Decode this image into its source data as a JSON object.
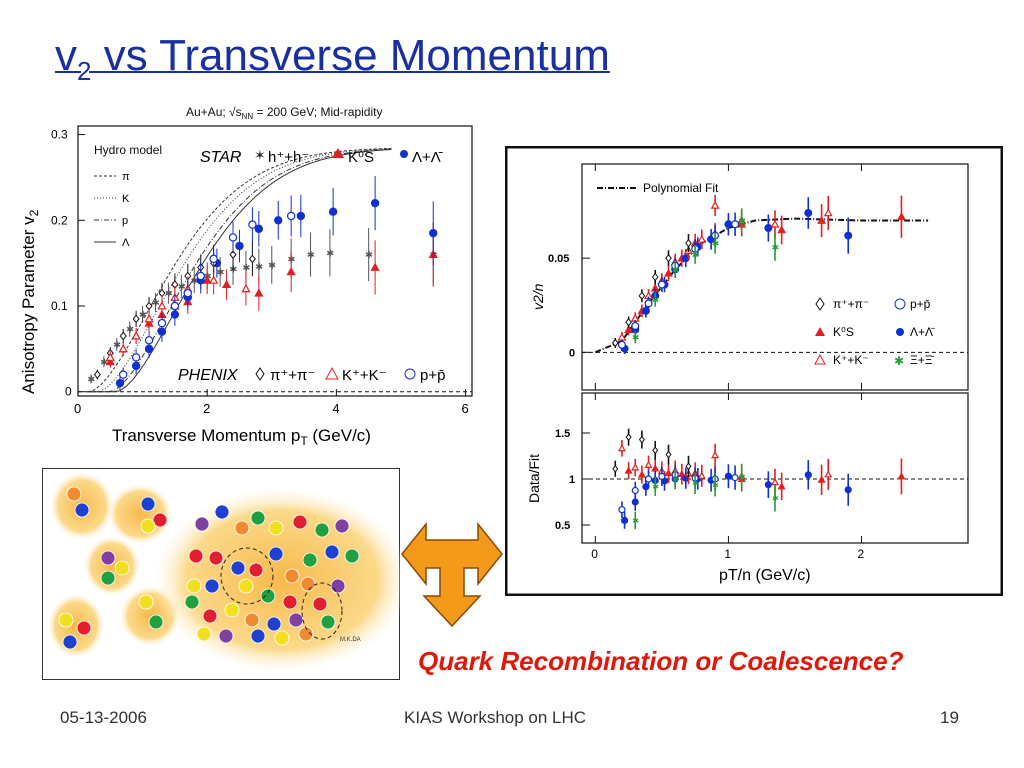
{
  "slide": {
    "title_main": "v",
    "title_sub": "2",
    "title_rest": " vs Transverse Momentum",
    "caption": "Quark Recombination or Coalescence?",
    "footer_date": "05-13-2006",
    "footer_event": "KIAS Workshop on LHC",
    "footer_page": "19"
  },
  "colors": {
    "title": "#1a2fa0",
    "caption": "#e0180a",
    "red": "#e02020",
    "blue": "#1030d0",
    "green": "#20a030",
    "black": "#111111"
  },
  "left_plot": {
    "header": "Au+Au; √s",
    "header_sub": "NN",
    "header_rest": " = 200 GeV; Mid-rapidity",
    "ylabel": "Anisotropy Parameter v",
    "ylabel_sub": "2",
    "xlabel": "Transverse Momentum p",
    "xlabel_sub": "T",
    "xlabel_rest": " (GeV/c)",
    "hydro_title": "Hydro model",
    "hydro_items": [
      "π",
      "K",
      "p",
      "Λ"
    ],
    "star_label": "STAR",
    "phenix_label": "PHENIX",
    "star_legend": [
      "h⁺+h⁻",
      "K⁰S",
      "Λ+Λ̄"
    ],
    "phenix_legend": [
      "π⁺+π⁻",
      "K⁺+K⁻",
      "p+p̄"
    ],
    "xticks": [
      "0",
      "2",
      "4",
      "6"
    ],
    "yticks": [
      "0",
      "0.1",
      "0.2",
      "0.3"
    ]
  },
  "right_plot": {
    "legend_fit": "Polynomial Fit",
    "upper_ylabel": "v2/n",
    "lower_ylabel": "Data/Fit",
    "xlabel": "pT/n (GeV/c)",
    "upper_yticks": [
      "0",
      "0.05"
    ],
    "lower_yticks": [
      "0.5",
      "1",
      "1.5"
    ],
    "xticks": [
      "0",
      "1",
      "2"
    ],
    "legend": [
      "π⁺+π⁻",
      "p+p̄",
      "K⁰S",
      "Λ+Λ̄",
      "K⁺+K⁻",
      "Ξ+Ξ̄"
    ]
  },
  "illustration": {
    "label": "M.K.DA"
  },
  "chart_data": [
    {
      "type": "scatter",
      "title": "Au+Au; √sNN = 200 GeV; Mid-rapidity",
      "xlabel": "Transverse Momentum pT (GeV/c)",
      "ylabel": "Anisotropy Parameter v2",
      "xlim": [
        0,
        6.1
      ],
      "ylim": [
        -0.005,
        0.31
      ],
      "series": [
        {
          "name": "STAR h⁺+h⁻",
          "color": "#555555",
          "marker": "star",
          "x": [
            0.2,
            0.4,
            0.6,
            0.8,
            1.0,
            1.2,
            1.4,
            1.6,
            1.8,
            2.0,
            2.2,
            2.4,
            2.6,
            2.8,
            3.0,
            3.3,
            3.6,
            3.9,
            4.5,
            5.5
          ],
          "y": [
            0.015,
            0.035,
            0.055,
            0.073,
            0.09,
            0.104,
            0.115,
            0.123,
            0.13,
            0.135,
            0.14,
            0.143,
            0.145,
            0.146,
            0.148,
            0.155,
            0.16,
            0.162,
            0.16,
            0.16
          ]
        },
        {
          "name": "STAR K⁰S",
          "color": "#e02020",
          "marker": "triangle",
          "x": [
            0.5,
            0.7,
            0.9,
            1.1,
            1.3,
            1.5,
            1.7,
            2.0,
            2.3,
            2.8,
            3.3,
            4.6,
            5.5
          ],
          "y": [
            0.035,
            0.05,
            0.065,
            0.08,
            0.09,
            0.1,
            0.105,
            0.13,
            0.125,
            0.115,
            0.14,
            0.145,
            0.16
          ]
        },
        {
          "name": "STAR Λ+Λ̄",
          "color": "#1030d0",
          "marker": "circle",
          "x": [
            0.65,
            0.9,
            1.1,
            1.3,
            1.5,
            1.7,
            1.9,
            2.15,
            2.5,
            2.8,
            3.1,
            3.45,
            3.95,
            4.6,
            5.5
          ],
          "y": [
            0.01,
            0.03,
            0.05,
            0.07,
            0.09,
            0.11,
            0.13,
            0.15,
            0.17,
            0.19,
            0.2,
            0.205,
            0.21,
            0.22,
            0.185
          ]
        },
        {
          "name": "PHENIX π⁺+π⁻",
          "color": "#111111",
          "marker": "diamond",
          "x": [
            0.3,
            0.5,
            0.7,
            0.9,
            1.1,
            1.3,
            1.5,
            1.7,
            1.9,
            2.1,
            2.4,
            2.7
          ],
          "y": [
            0.02,
            0.045,
            0.065,
            0.085,
            0.1,
            0.115,
            0.125,
            0.135,
            0.145,
            0.15,
            0.16,
            0.155
          ]
        },
        {
          "name": "PHENIX K⁺+K⁻",
          "color": "#e02020",
          "marker": "triangle-open",
          "x": [
            0.5,
            0.7,
            0.9,
            1.1,
            1.3,
            1.5,
            1.7,
            2.1,
            2.6
          ],
          "y": [
            0.04,
            0.05,
            0.065,
            0.085,
            0.1,
            0.11,
            0.12,
            0.13,
            0.12
          ]
        },
        {
          "name": "PHENIX p+p̄",
          "color": "#1030d0",
          "marker": "circle-open",
          "x": [
            0.7,
            0.9,
            1.1,
            1.3,
            1.5,
            1.7,
            1.9,
            2.1,
            2.4,
            2.7,
            3.3
          ],
          "y": [
            0.02,
            0.04,
            0.06,
            0.08,
            0.1,
            0.115,
            0.135,
            0.155,
            0.18,
            0.195,
            0.205
          ]
        }
      ]
    },
    {
      "type": "scatter",
      "xlabel": "pT/n (GeV/c)",
      "ylabel": "v2/n",
      "xlim": [
        -0.1,
        2.8
      ],
      "ylim": [
        -0.02,
        0.1
      ],
      "series": [
        {
          "name": "Polynomial Fit",
          "color": "#111111",
          "marker": "line",
          "x": [
            0.0,
            0.2,
            0.4,
            0.6,
            0.8,
            1.0,
            1.2,
            1.5,
            2.0,
            2.5
          ],
          "y": [
            0.0,
            0.006,
            0.026,
            0.044,
            0.058,
            0.066,
            0.07,
            0.071,
            0.07,
            0.07
          ]
        },
        {
          "name": "K⁰S",
          "color": "#e02020",
          "marker": "triangle",
          "x": [
            0.25,
            0.35,
            0.45,
            0.55,
            0.65,
            0.75,
            0.9,
            1.1,
            1.4,
            1.7,
            2.3
          ],
          "y": [
            0.012,
            0.022,
            0.034,
            0.042,
            0.05,
            0.058,
            0.063,
            0.068,
            0.065,
            0.07,
            0.072
          ]
        },
        {
          "name": "Λ+Λ̄",
          "color": "#1030d0",
          "marker": "circle",
          "x": [
            0.22,
            0.3,
            0.38,
            0.45,
            0.52,
            0.6,
            0.68,
            0.77,
            0.87,
            1.0,
            1.3,
            1.6,
            1.9
          ],
          "y": [
            0.002,
            0.012,
            0.022,
            0.03,
            0.036,
            0.044,
            0.05,
            0.056,
            0.06,
            0.068,
            0.066,
            0.074,
            0.062
          ]
        },
        {
          "name": "K⁺+K⁻",
          "color": "#e02020",
          "marker": "triangle-open",
          "x": [
            0.2,
            0.3,
            0.4,
            0.5,
            0.6,
            0.7,
            0.8,
            0.9,
            1.1,
            1.35,
            1.75
          ],
          "y": [
            0.008,
            0.018,
            0.03,
            0.038,
            0.048,
            0.054,
            0.06,
            0.078,
            0.07,
            0.068,
            0.074
          ]
        },
        {
          "name": "π⁺+π⁻",
          "color": "#111111",
          "marker": "diamond-open",
          "x": [
            0.15,
            0.25,
            0.35,
            0.45,
            0.55,
            0.7
          ],
          "y": [
            0.005,
            0.016,
            0.03,
            0.04,
            0.05,
            0.058
          ]
        },
        {
          "name": "p+p̄",
          "color": "#1030d0",
          "marker": "circle-open",
          "x": [
            0.2,
            0.3,
            0.4,
            0.5,
            0.6,
            0.75,
            0.9,
            1.05
          ],
          "y": [
            0.004,
            0.014,
            0.026,
            0.036,
            0.046,
            0.055,
            0.062,
            0.068
          ]
        },
        {
          "name": "Ξ+Ξ̄",
          "color": "#20a030",
          "marker": "star",
          "x": [
            0.3,
            0.45,
            0.6,
            0.75,
            0.9,
            1.1,
            1.35
          ],
          "y": [
            0.008,
            0.028,
            0.044,
            0.052,
            0.058,
            0.07,
            0.056
          ]
        }
      ]
    }
  ]
}
